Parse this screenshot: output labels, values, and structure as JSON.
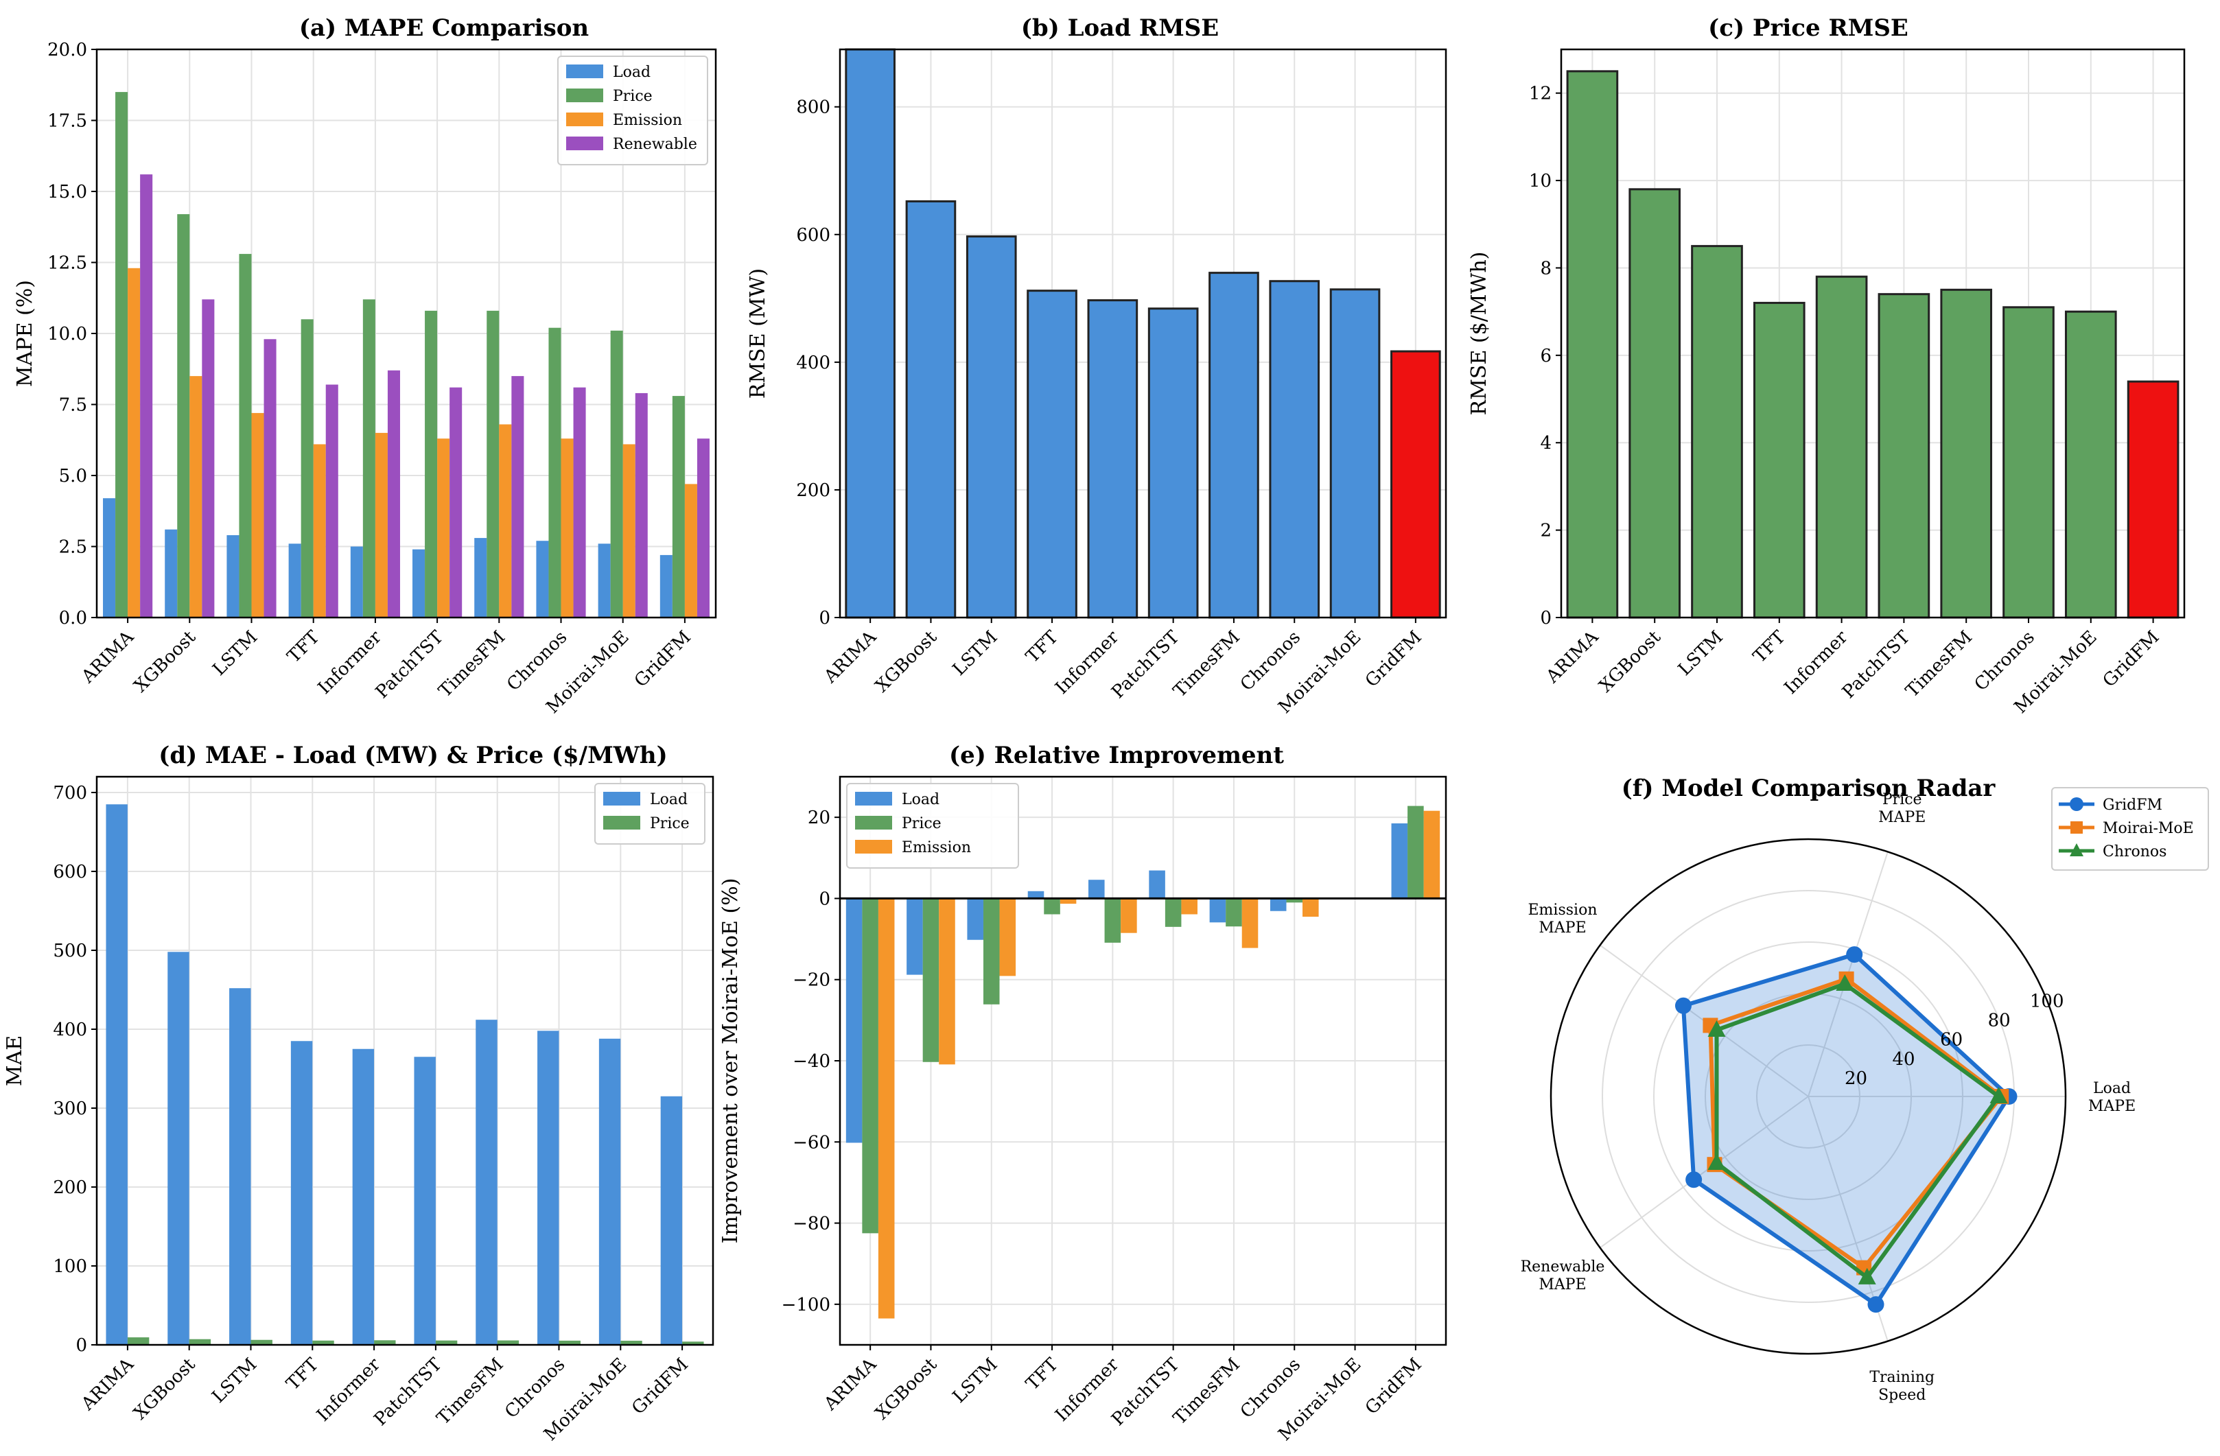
{
  "colors": {
    "load": "#4a90d9",
    "price": "#5fa15f",
    "emission": "#f5962a",
    "renewable": "#9b4fbf",
    "highlight": "#ee1111",
    "gridfm": "#1e6fcf",
    "moirai": "#ef7d1a",
    "chronos": "#2e8b3a"
  },
  "chart_data": [
    {
      "id": "a",
      "type": "bar",
      "title": "(a) MAPE Comparison",
      "xlabel": "",
      "ylabel": "MAPE (%)",
      "ylim": [
        0,
        20
      ],
      "yticks": [
        "0.0",
        "2.5",
        "5.0",
        "7.5",
        "10.0",
        "12.5",
        "15.0",
        "17.5",
        "20.0"
      ],
      "grid": true,
      "legend_position": "top-right",
      "categories": [
        "ARIMA",
        "XGBoost",
        "LSTM",
        "TFT",
        "Informer",
        "PatchTST",
        "TimesFM",
        "Chronos",
        "Moirai-MoE",
        "GridFM"
      ],
      "series": [
        {
          "name": "Load",
          "color_key": "load",
          "values": [
            4.2,
            3.1,
            2.9,
            2.6,
            2.5,
            2.4,
            2.8,
            2.7,
            2.6,
            2.2
          ]
        },
        {
          "name": "Price",
          "color_key": "price",
          "values": [
            18.5,
            14.2,
            12.8,
            10.5,
            11.2,
            10.8,
            10.8,
            10.2,
            10.1,
            7.8
          ]
        },
        {
          "name": "Emission",
          "color_key": "emission",
          "values": [
            12.3,
            8.5,
            7.2,
            6.1,
            6.5,
            6.3,
            6.8,
            6.3,
            6.1,
            4.7
          ]
        },
        {
          "name": "Renewable",
          "color_key": "renewable",
          "values": [
            15.6,
            11.2,
            9.8,
            8.2,
            8.7,
            8.1,
            8.5,
            8.1,
            7.9,
            6.3
          ]
        }
      ]
    },
    {
      "id": "b",
      "type": "bar",
      "title": "(b) Load RMSE",
      "xlabel": "",
      "ylabel": "RMSE (MW)",
      "ylim": [
        0,
        890
      ],
      "yticks": [
        "0",
        "200",
        "400",
        "600",
        "800"
      ],
      "ytick_values": [
        0,
        200,
        400,
        600,
        800
      ],
      "grid": true,
      "categories": [
        "ARIMA",
        "XGBoost",
        "LSTM",
        "TFT",
        "Informer",
        "PatchTST",
        "TimesFM",
        "Chronos",
        "Moirai-MoE",
        "GridFM"
      ],
      "values": [
        890,
        652,
        597,
        512,
        497,
        484,
        540,
        527,
        514,
        417
      ],
      "color_key": "load",
      "highlight_index": 9
    },
    {
      "id": "c",
      "type": "bar",
      "title": "(c) Price RMSE",
      "xlabel": "",
      "ylabel": "RMSE ($/MWh)",
      "ylim": [
        0,
        13
      ],
      "yticks": [
        "0",
        "2",
        "4",
        "6",
        "8",
        "10",
        "12"
      ],
      "ytick_values": [
        0,
        2,
        4,
        6,
        8,
        10,
        12
      ],
      "grid": true,
      "categories": [
        "ARIMA",
        "XGBoost",
        "LSTM",
        "TFT",
        "Informer",
        "PatchTST",
        "TimesFM",
        "Chronos",
        "Moirai-MoE",
        "GridFM"
      ],
      "values": [
        12.5,
        9.8,
        8.5,
        7.2,
        7.8,
        7.4,
        7.5,
        7.1,
        7.0,
        5.4
      ],
      "color_key": "price",
      "highlight_index": 9
    },
    {
      "id": "d",
      "type": "bar",
      "title": "(d) MAE - Load (MW) & Price ($/MWh)",
      "xlabel": "",
      "ylabel": "MAE",
      "ylim": [
        0,
        720
      ],
      "yticks": [
        "0",
        "100",
        "200",
        "300",
        "400",
        "500",
        "600",
        "700"
      ],
      "ytick_values": [
        0,
        100,
        200,
        300,
        400,
        500,
        600,
        700
      ],
      "grid": true,
      "legend_position": "top-right",
      "categories": [
        "ARIMA",
        "XGBoost",
        "LSTM",
        "TFT",
        "Informer",
        "PatchTST",
        "TimesFM",
        "Chronos",
        "Moirai-MoE",
        "GridFM"
      ],
      "series": [
        {
          "name": "Load",
          "color_key": "load",
          "values": [
            685,
            498,
            452,
            385,
            375,
            365,
            412,
            398,
            388,
            315
          ]
        },
        {
          "name": "Price",
          "color_key": "price",
          "values": [
            9.5,
            7.2,
            6.3,
            5.4,
            5.8,
            5.5,
            5.6,
            5.3,
            5.2,
            4.1
          ]
        }
      ]
    },
    {
      "id": "e",
      "type": "bar",
      "title": "(e) Relative Improvement",
      "xlabel": "",
      "ylabel": "Improvement over Moirai-MoE (%)",
      "ylim": [
        -110,
        30
      ],
      "yticks": [
        "−100",
        "−80",
        "−60",
        "−40",
        "−20",
        "0",
        "20"
      ],
      "ytick_values": [
        -100,
        -80,
        -60,
        -40,
        -20,
        0,
        20
      ],
      "grid": true,
      "legend_position": "top-left",
      "categories": [
        "ARIMA",
        "XGBoost",
        "LSTM",
        "TFT",
        "Informer",
        "PatchTST",
        "TimesFM",
        "Chronos",
        "Moirai-MoE",
        "GridFM"
      ],
      "series": [
        {
          "name": "Load",
          "color_key": "load",
          "values": [
            -60.2,
            -18.8,
            -10.2,
            1.8,
            4.6,
            6.9,
            -5.9,
            -3.1,
            0,
            18.5
          ]
        },
        {
          "name": "Price",
          "color_key": "price",
          "values": [
            -82.5,
            -40.3,
            -26.1,
            -3.9,
            -10.9,
            -7.0,
            -6.9,
            -1.0,
            0,
            22.8
          ]
        },
        {
          "name": "Emission",
          "color_key": "emission",
          "values": [
            -103.5,
            -40.9,
            -19.1,
            -1.3,
            -8.5,
            -3.9,
            -12.2,
            -4.5,
            0,
            21.6
          ]
        }
      ]
    },
    {
      "id": "f",
      "type": "radar",
      "title": "(f) Model Comparison Radar",
      "rlim": [
        0,
        100
      ],
      "rticks": [
        "20",
        "40",
        "60",
        "80",
        "100"
      ],
      "rtick_values": [
        20,
        40,
        60,
        80,
        100
      ],
      "axes": [
        {
          "lines": [
            "Load",
            "MAPE"
          ]
        },
        {
          "lines": [
            "Price",
            "MAPE"
          ]
        },
        {
          "lines": [
            "Emission",
            "MAPE"
          ]
        },
        {
          "lines": [
            "Renewable",
            "MAPE"
          ]
        },
        {
          "lines": [
            "Training",
            "Speed"
          ]
        }
      ],
      "legend_position": "top-right",
      "series": [
        {
          "name": "GridFM",
          "color_key": "gridfm",
          "marker": "circle",
          "values": [
            78,
            58,
            60,
            55,
            85
          ],
          "filled": true
        },
        {
          "name": "Moirai-MoE",
          "color_key": "moirai",
          "marker": "square",
          "values": [
            75,
            48,
            47,
            45,
            70
          ],
          "filled": false
        },
        {
          "name": "Chronos",
          "color_key": "chronos",
          "marker": "triangle",
          "values": [
            74,
            46,
            44,
            44,
            74
          ],
          "filled": false
        }
      ]
    }
  ]
}
